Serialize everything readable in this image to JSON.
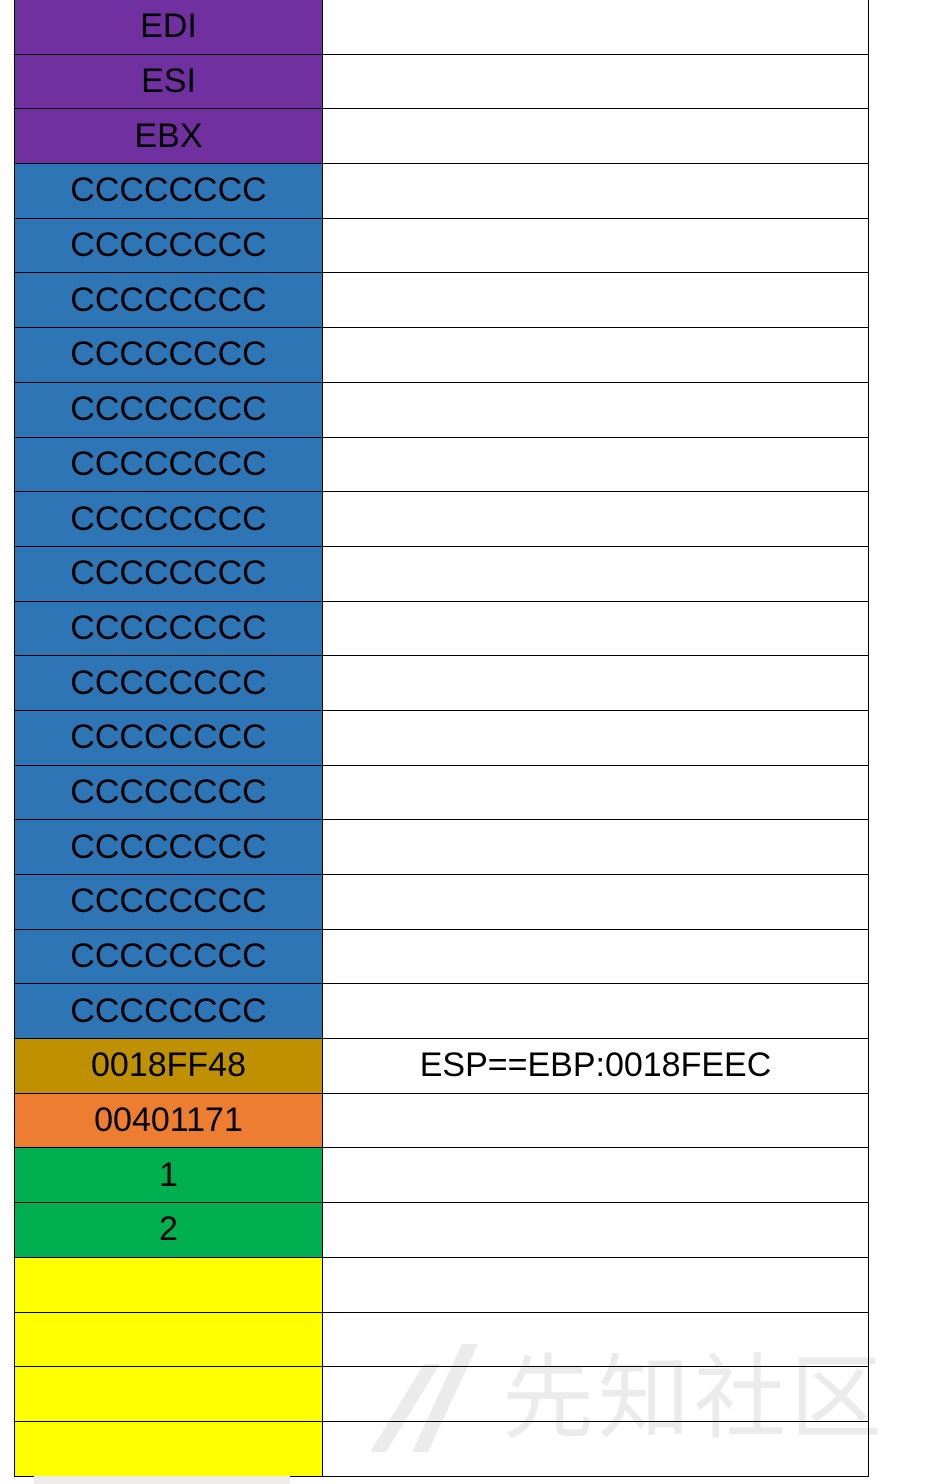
{
  "colors": {
    "saved_register": "#7030a0",
    "cc_fill": "#2e75b6",
    "saved_ebp": "#bf9000",
    "return_address": "#ed7d31",
    "argument": "#00b050",
    "empty": "#ffff00",
    "annotation_bg": "#ffffff",
    "border": "#000000"
  },
  "stack": {
    "rows": [
      {
        "value": "EDI",
        "kind": "saved_register",
        "note": ""
      },
      {
        "value": "ESI",
        "kind": "saved_register",
        "note": ""
      },
      {
        "value": "EBX",
        "kind": "saved_register",
        "note": ""
      },
      {
        "value": "CCCCCCCC",
        "kind": "cc_fill",
        "note": ""
      },
      {
        "value": "CCCCCCCC",
        "kind": "cc_fill",
        "note": ""
      },
      {
        "value": "CCCCCCCC",
        "kind": "cc_fill",
        "note": ""
      },
      {
        "value": "CCCCCCCC",
        "kind": "cc_fill",
        "note": ""
      },
      {
        "value": "CCCCCCCC",
        "kind": "cc_fill",
        "note": ""
      },
      {
        "value": "CCCCCCCC",
        "kind": "cc_fill",
        "note": ""
      },
      {
        "value": "CCCCCCCC",
        "kind": "cc_fill",
        "note": ""
      },
      {
        "value": "CCCCCCCC",
        "kind": "cc_fill",
        "note": ""
      },
      {
        "value": "CCCCCCCC",
        "kind": "cc_fill",
        "note": ""
      },
      {
        "value": "CCCCCCCC",
        "kind": "cc_fill",
        "note": ""
      },
      {
        "value": "CCCCCCCC",
        "kind": "cc_fill",
        "note": ""
      },
      {
        "value": "CCCCCCCC",
        "kind": "cc_fill",
        "note": ""
      },
      {
        "value": "CCCCCCCC",
        "kind": "cc_fill",
        "note": ""
      },
      {
        "value": "CCCCCCCC",
        "kind": "cc_fill",
        "note": ""
      },
      {
        "value": "CCCCCCCC",
        "kind": "cc_fill",
        "note": ""
      },
      {
        "value": "CCCCCCCC",
        "kind": "cc_fill",
        "note": ""
      },
      {
        "value": "0018FF48",
        "kind": "saved_ebp",
        "note": "ESP==EBP:0018FEEC"
      },
      {
        "value": "00401171",
        "kind": "return_address",
        "note": ""
      },
      {
        "value": "1",
        "kind": "argument",
        "note": ""
      },
      {
        "value": "2",
        "kind": "argument",
        "note": ""
      },
      {
        "value": "",
        "kind": "empty",
        "note": ""
      },
      {
        "value": "",
        "kind": "empty",
        "note": ""
      },
      {
        "value": "",
        "kind": "empty",
        "note": ""
      },
      {
        "value": "",
        "kind": "empty",
        "note": ""
      }
    ]
  },
  "watermark": {
    "text": "先知社区",
    "logo_icon": "xianzhi-logo-icon"
  }
}
